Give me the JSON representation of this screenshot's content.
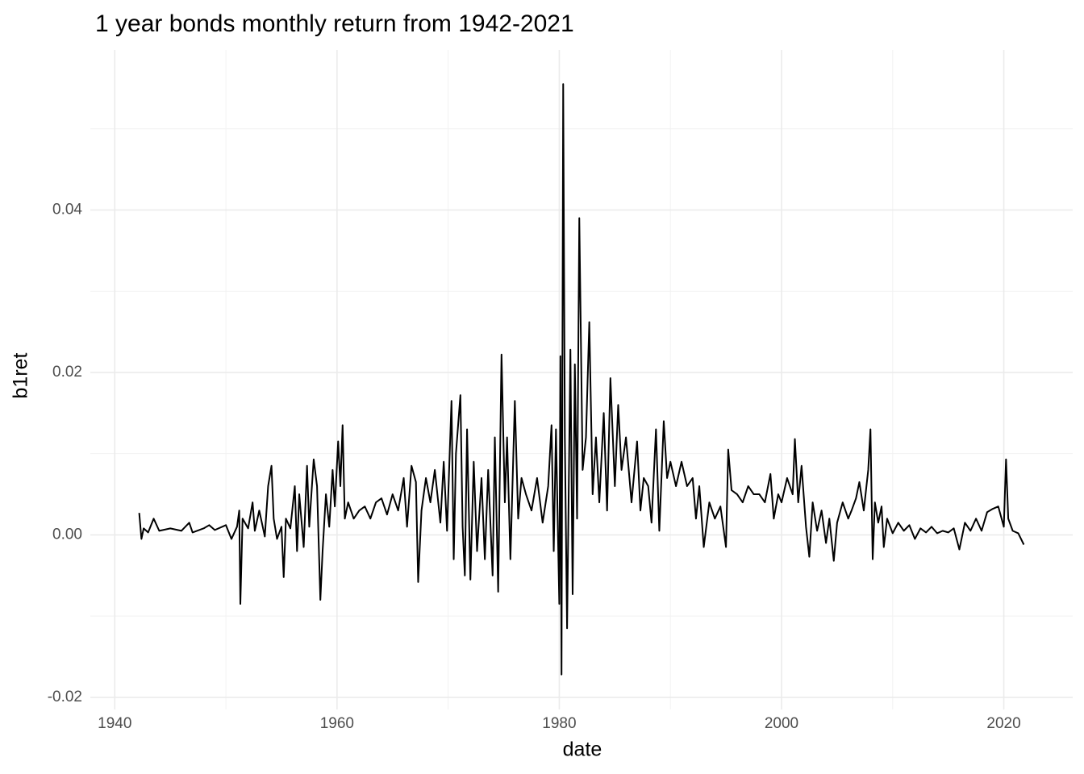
{
  "chart_data": {
    "type": "line",
    "title": "1 year bonds monthly return from 1942-2021",
    "x_label": "date",
    "y_label": "b1ret",
    "xlim": [
      1937.8,
      2026.2
    ],
    "ylim": [
      -0.0215,
      0.0597
    ],
    "xticks": [
      1940,
      1960,
      1980,
      2000,
      2020
    ],
    "yticks": [
      -0.02,
      {
        "value": 0,
        "label": "0.00"
      },
      0.02,
      0.04
    ],
    "minor_xticks": [
      1950,
      1970,
      1990,
      2010
    ],
    "minor_yticks": [
      -0.01,
      0.01,
      0.03,
      0.05
    ],
    "grid": true,
    "series": [
      {
        "name": "b1ret",
        "color": "#000000",
        "x": [
          1942.2,
          1942.4,
          1942.6,
          1943,
          1943.5,
          1944,
          1945,
          1946,
          1946.7,
          1947,
          1948,
          1948.5,
          1949,
          1950,
          1950.5,
          1951.0,
          1951.2,
          1951.3,
          1951.5,
          1952,
          1952.4,
          1952.6,
          1953,
          1953.5,
          1953.8,
          1954.1,
          1954.3,
          1954.6,
          1955,
          1955.2,
          1955.4,
          1955.8,
          1956.2,
          1956.4,
          1956.6,
          1957,
          1957.3,
          1957.5,
          1957.9,
          1958.2,
          1958.5,
          1958.7,
          1959,
          1959.3,
          1959.6,
          1959.8,
          1960.1,
          1960.3,
          1960.5,
          1960.7,
          1961,
          1961.5,
          1962,
          1962.5,
          1963,
          1963.5,
          1964,
          1964.5,
          1965,
          1965.5,
          1966,
          1966.3,
          1966.7,
          1967.1,
          1967.3,
          1967.6,
          1968,
          1968.4,
          1968.8,
          1969.3,
          1969.6,
          1969.9,
          1970.3,
          1970.5,
          1970.7,
          1971.1,
          1971.3,
          1971.5,
          1971.7,
          1972,
          1972.3,
          1972.6,
          1973,
          1973.3,
          1973.6,
          1974,
          1974.2,
          1974.5,
          1974.8,
          1975.1,
          1975.3,
          1975.6,
          1976,
          1976.3,
          1976.6,
          1977,
          1977.5,
          1978,
          1978.5,
          1979,
          1979.3,
          1979.5,
          1979.7,
          1980.0,
          1980.1,
          1980.2,
          1980.35,
          1980.5,
          1980.7,
          1981.0,
          1981.2,
          1981.4,
          1981.6,
          1981.8,
          1982.1,
          1982.4,
          1982.7,
          1983,
          1983.3,
          1983.6,
          1984,
          1984.3,
          1984.6,
          1985,
          1985.3,
          1985.6,
          1986,
          1986.5,
          1987,
          1987.3,
          1987.6,
          1988,
          1988.3,
          1988.7,
          1989,
          1989.4,
          1989.7,
          1990,
          1990.5,
          1991,
          1991.5,
          1992,
          1992.3,
          1992.6,
          1993,
          1993.5,
          1994,
          1994.5,
          1995,
          1995.2,
          1995.5,
          1996,
          1996.5,
          1997,
          1997.5,
          1998,
          1998.5,
          1999,
          1999.3,
          1999.7,
          2000,
          2000.5,
          2001,
          2001.2,
          2001.5,
          2001.8,
          2002.2,
          2002.5,
          2002.8,
          2003.2,
          2003.6,
          2004,
          2004.3,
          2004.7,
          2005,
          2005.5,
          2006,
          2006.3,
          2006.7,
          2007,
          2007.4,
          2007.8,
          2008.0,
          2008.2,
          2008.4,
          2008.7,
          2009,
          2009.2,
          2009.5,
          2010,
          2010.5,
          2011,
          2011.5,
          2012,
          2012.5,
          2013,
          2013.5,
          2014,
          2014.5,
          2015,
          2015.5,
          2016,
          2016.5,
          2017,
          2017.5,
          2018,
          2018.5,
          2019,
          2019.5,
          2020.0,
          2020.2,
          2020.4,
          2020.8,
          2021.3,
          2021.8
        ],
        "values": [
          0.0027,
          -0.0005,
          0.0008,
          0.0003,
          0.002,
          0.0005,
          0.0008,
          0.0005,
          0.0015,
          0.0003,
          0.0008,
          0.0012,
          0.0006,
          0.0012,
          -0.0005,
          0.001,
          0.003,
          -0.0085,
          0.002,
          0.0008,
          0.004,
          0.0005,
          0.003,
          -0.0002,
          0.006,
          0.0085,
          0.002,
          -0.0005,
          0.001,
          -0.0052,
          0.002,
          0.0008,
          0.006,
          -0.002,
          0.005,
          -0.0015,
          0.0085,
          0.001,
          0.0093,
          0.006,
          -0.008,
          -0.002,
          0.005,
          0.001,
          0.008,
          0.0035,
          0.0115,
          0.006,
          0.0135,
          0.002,
          0.004,
          0.002,
          0.003,
          0.0035,
          0.002,
          0.004,
          0.0045,
          0.0025,
          0.005,
          0.003,
          0.007,
          0.001,
          0.0085,
          0.0065,
          -0.0058,
          0.003,
          0.007,
          0.004,
          0.008,
          0.0015,
          0.009,
          0.0005,
          0.0165,
          -0.003,
          0.01,
          0.0172,
          0.001,
          -0.005,
          0.013,
          -0.0055,
          0.009,
          -0.002,
          0.007,
          -0.003,
          0.008,
          -0.005,
          0.012,
          -0.007,
          0.0222,
          0.004,
          0.012,
          -0.003,
          0.0165,
          0.002,
          0.007,
          0.005,
          0.003,
          0.007,
          0.0015,
          0.006,
          0.0135,
          -0.002,
          0.013,
          -0.0085,
          0.022,
          -0.0172,
          0.0555,
          0.012,
          -0.0115,
          0.0228,
          -0.0073,
          0.021,
          0.002,
          0.039,
          0.008,
          0.012,
          0.0262,
          0.005,
          0.012,
          0.004,
          0.015,
          0.003,
          0.0193,
          0.006,
          0.016,
          0.008,
          0.012,
          0.004,
          0.0115,
          0.003,
          0.007,
          0.006,
          0.0015,
          0.013,
          0.0005,
          0.014,
          0.007,
          0.009,
          0.006,
          0.009,
          0.006,
          0.007,
          0.002,
          0.006,
          -0.0015,
          0.004,
          0.002,
          0.0035,
          -0.0015,
          0.0105,
          0.0055,
          0.005,
          0.004,
          0.006,
          0.005,
          0.005,
          0.004,
          0.0075,
          0.002,
          0.005,
          0.004,
          0.007,
          0.005,
          0.0118,
          0.004,
          0.0085,
          0.001,
          -0.0027,
          0.004,
          0.0005,
          0.003,
          -0.001,
          0.002,
          -0.0032,
          0.0015,
          0.004,
          0.002,
          0.003,
          0.0045,
          0.0065,
          0.003,
          0.008,
          0.013,
          -0.003,
          0.004,
          0.0015,
          0.0035,
          -0.0015,
          0.002,
          0.0002,
          0.0015,
          0.0005,
          0.0012,
          -0.0005,
          0.0008,
          0.0003,
          0.001,
          0.0002,
          0.0005,
          0.0003,
          0.0008,
          -0.0018,
          0.0015,
          0.0005,
          0.002,
          0.0005,
          0.0028,
          0.0032,
          0.0035,
          0.001,
          0.0093,
          0.002,
          0.0005,
          0.0002,
          -0.0012
        ]
      }
    ]
  }
}
